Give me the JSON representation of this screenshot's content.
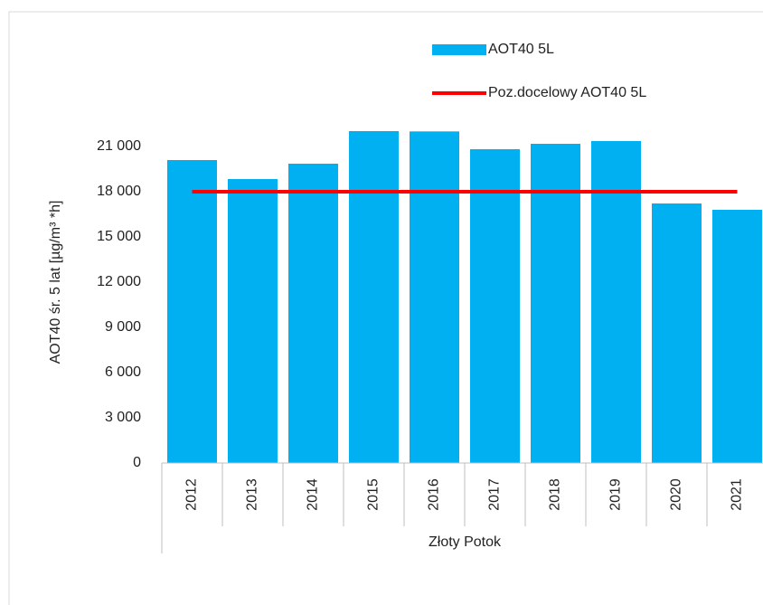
{
  "chart_data": {
    "type": "bar",
    "y_label": "AOT40  śr. 5 lat  [µg/m³ *h]",
    "x_group_label": "Złoty Potok",
    "categories": [
      "2012",
      "2013",
      "2014",
      "2015",
      "2016",
      "2017",
      "2018",
      "2019",
      "2020",
      "2021"
    ],
    "series": [
      {
        "name": "AOT40 5L",
        "type": "bar",
        "color": "#00b0f0",
        "values": [
          20100,
          18840,
          19860,
          22020,
          22000,
          20820,
          21180,
          21360,
          17220,
          16800
        ]
      },
      {
        "name": "Poz.docelowy AOT40 5L",
        "type": "line",
        "color": "#ff0000",
        "values": [
          18000,
          18000,
          18000,
          18000,
          18000,
          18000,
          18000,
          18000,
          18000,
          18000
        ]
      }
    ],
    "ylim": [
      0,
      24000
    ],
    "yticks": [
      0,
      {
        "value": 3000,
        "label": "3 000"
      },
      {
        "value": 6000,
        "label": "6 000"
      },
      {
        "value": 9000,
        "label": "9 000"
      },
      {
        "value": 12000,
        "label": "12 000"
      },
      {
        "value": 15000,
        "label": "15 000"
      },
      {
        "value": 18000,
        "label": "18 000"
      },
      {
        "value": 21000,
        "label": "21 000"
      }
    ],
    "grid": false
  }
}
